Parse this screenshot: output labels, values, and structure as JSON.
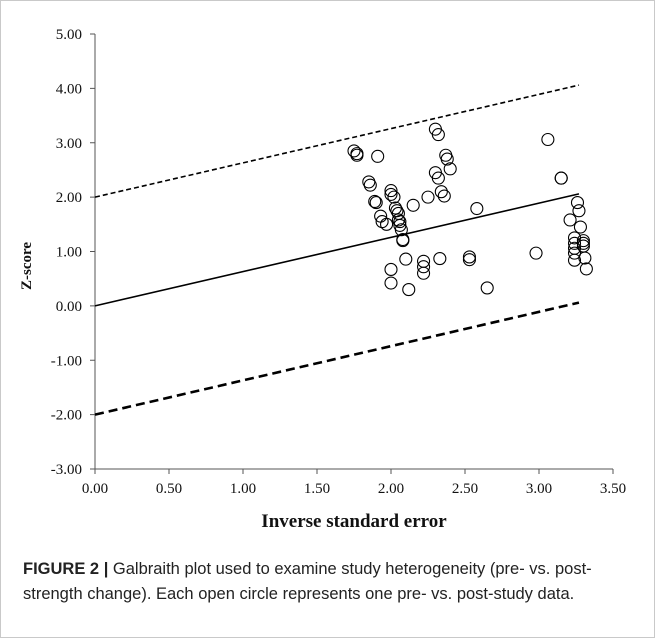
{
  "caption": {
    "label": "FIGURE 2",
    "separator": " | ",
    "text": "Galbraith plot used to examine study heterogeneity (pre- vs. post-strength change). Each open circle represents one pre- vs. post-study data."
  },
  "chart_data": {
    "type": "scatter",
    "title": "",
    "xlabel": "Inverse standard error",
    "ylabel": "Z-score",
    "xlim": [
      0,
      3.5
    ],
    "ylim": [
      -3,
      5
    ],
    "x_ticks": [
      "0.00",
      "0.50",
      "1.00",
      "1.50",
      "2.00",
      "2.50",
      "3.00",
      "3.50"
    ],
    "y_ticks": [
      "-3.00",
      "-2.00",
      "-1.00",
      "0.00",
      "1.00",
      "2.00",
      "3.00",
      "4.00",
      "5.00"
    ],
    "grid": false,
    "marker": "open-circle",
    "lines": [
      {
        "x": [
          0,
          3.27
        ],
        "y": [
          2.0,
          4.06
        ],
        "style": "dashed-thin"
      },
      {
        "x": [
          0,
          3.27
        ],
        "y": [
          0.0,
          2.06
        ],
        "style": "solid"
      },
      {
        "x": [
          0,
          3.27
        ],
        "y": [
          -2.0,
          0.06
        ],
        "style": "dashed-thick"
      }
    ],
    "points": [
      {
        "x": 1.75,
        "y": 2.85
      },
      {
        "x": 1.77,
        "y": 2.8
      },
      {
        "x": 1.77,
        "y": 2.77
      },
      {
        "x": 1.85,
        "y": 2.28
      },
      {
        "x": 1.86,
        "y": 2.22
      },
      {
        "x": 1.89,
        "y": 1.92
      },
      {
        "x": 1.9,
        "y": 1.9
      },
      {
        "x": 1.91,
        "y": 2.75
      },
      {
        "x": 1.93,
        "y": 1.65
      },
      {
        "x": 1.94,
        "y": 1.55
      },
      {
        "x": 1.97,
        "y": 1.5
      },
      {
        "x": 2.0,
        "y": 2.12
      },
      {
        "x": 2.0,
        "y": 2.05
      },
      {
        "x": 2.02,
        "y": 2.0
      },
      {
        "x": 2.03,
        "y": 1.8
      },
      {
        "x": 2.04,
        "y": 1.75
      },
      {
        "x": 2.05,
        "y": 1.7
      },
      {
        "x": 2.05,
        "y": 1.58
      },
      {
        "x": 2.06,
        "y": 1.55
      },
      {
        "x": 2.06,
        "y": 1.48
      },
      {
        "x": 2.07,
        "y": 1.4
      },
      {
        "x": 2.08,
        "y": 1.22
      },
      {
        "x": 2.08,
        "y": 1.2
      },
      {
        "x": 2.0,
        "y": 0.67
      },
      {
        "x": 2.0,
        "y": 0.42
      },
      {
        "x": 2.1,
        "y": 0.86
      },
      {
        "x": 2.12,
        "y": 0.3
      },
      {
        "x": 2.15,
        "y": 1.85
      },
      {
        "x": 2.22,
        "y": 0.82
      },
      {
        "x": 2.22,
        "y": 0.72
      },
      {
        "x": 2.22,
        "y": 0.6
      },
      {
        "x": 2.25,
        "y": 2.0
      },
      {
        "x": 2.3,
        "y": 3.25
      },
      {
        "x": 2.32,
        "y": 3.15
      },
      {
        "x": 2.3,
        "y": 2.45
      },
      {
        "x": 2.32,
        "y": 2.35
      },
      {
        "x": 2.34,
        "y": 2.1
      },
      {
        "x": 2.36,
        "y": 2.02
      },
      {
        "x": 2.37,
        "y": 2.77
      },
      {
        "x": 2.38,
        "y": 2.7
      },
      {
        "x": 2.4,
        "y": 2.52
      },
      {
        "x": 2.33,
        "y": 0.87
      },
      {
        "x": 2.53,
        "y": 0.9
      },
      {
        "x": 2.53,
        "y": 0.85
      },
      {
        "x": 2.58,
        "y": 1.79
      },
      {
        "x": 2.65,
        "y": 0.33
      },
      {
        "x": 2.98,
        "y": 0.97
      },
      {
        "x": 3.06,
        "y": 3.06
      },
      {
        "x": 3.15,
        "y": 2.35
      },
      {
        "x": 3.15,
        "y": 2.35
      },
      {
        "x": 3.21,
        "y": 1.58
      },
      {
        "x": 3.24,
        "y": 1.25
      },
      {
        "x": 3.24,
        "y": 1.15
      },
      {
        "x": 3.24,
        "y": 1.06
      },
      {
        "x": 3.24,
        "y": 0.97
      },
      {
        "x": 3.24,
        "y": 0.84
      },
      {
        "x": 3.26,
        "y": 1.9
      },
      {
        "x": 3.27,
        "y": 1.75
      },
      {
        "x": 3.28,
        "y": 1.45
      },
      {
        "x": 3.3,
        "y": 1.2
      },
      {
        "x": 3.3,
        "y": 1.15
      },
      {
        "x": 3.3,
        "y": 1.1
      },
      {
        "x": 3.31,
        "y": 0.88
      },
      {
        "x": 3.32,
        "y": 0.68
      }
    ]
  }
}
